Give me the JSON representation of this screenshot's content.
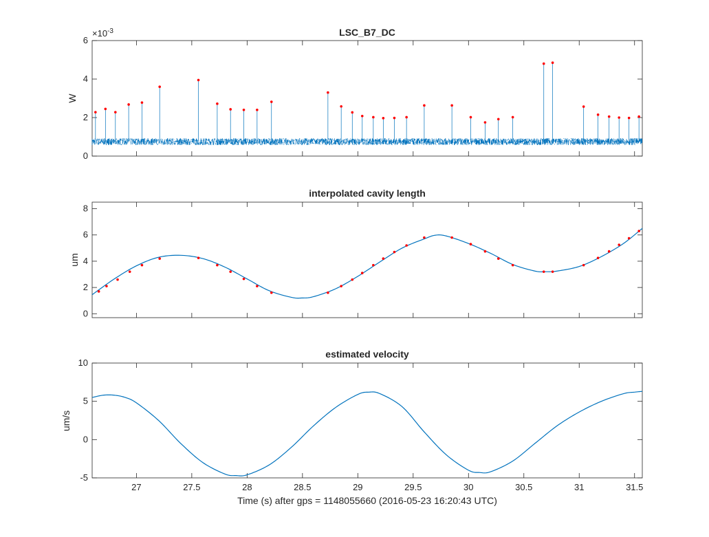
{
  "xlabel": "Time (s) after gps = 1148055660 (2016-05-23 16:20:43 UTC)",
  "x_tick_labels": [
    "27",
    "27.5",
    "28",
    "28.5",
    "29",
    "29.5",
    "30",
    "30.5",
    "31",
    "31.5"
  ],
  "colors": {
    "trace": "#0072BD",
    "marker": "#FF0000",
    "axis": "#262626"
  },
  "chart_data": [
    {
      "type": "line",
      "title": "LSC_B7_DC",
      "ylabel": "W",
      "exponent_label": "×10",
      "exponent_power": "-3",
      "xlim": [
        26.6,
        31.57
      ],
      "ylim": [
        0,
        6
      ],
      "y_ticks": [
        0,
        2,
        4,
        6
      ],
      "y_tick_labels": [
        "0",
        "2",
        "4",
        "6"
      ],
      "grid": false,
      "baseline": 0.75,
      "noise_amplitude": 0.18,
      "peaks": [
        {
          "x": 26.63,
          "y": 2.28
        },
        {
          "x": 26.72,
          "y": 2.45
        },
        {
          "x": 26.81,
          "y": 2.28
        },
        {
          "x": 26.93,
          "y": 2.68
        },
        {
          "x": 27.05,
          "y": 2.78
        },
        {
          "x": 27.21,
          "y": 3.6
        },
        {
          "x": 27.56,
          "y": 3.95
        },
        {
          "x": 27.73,
          "y": 2.72
        },
        {
          "x": 27.85,
          "y": 2.43
        },
        {
          "x": 27.97,
          "y": 2.4
        },
        {
          "x": 28.09,
          "y": 2.4
        },
        {
          "x": 28.22,
          "y": 2.82
        },
        {
          "x": 28.73,
          "y": 3.3
        },
        {
          "x": 28.85,
          "y": 2.58
        },
        {
          "x": 28.95,
          "y": 2.27
        },
        {
          "x": 29.04,
          "y": 2.08
        },
        {
          "x": 29.14,
          "y": 2.02
        },
        {
          "x": 29.23,
          "y": 1.97
        },
        {
          "x": 29.33,
          "y": 1.98
        },
        {
          "x": 29.44,
          "y": 2.02
        },
        {
          "x": 29.6,
          "y": 2.63
        },
        {
          "x": 29.85,
          "y": 2.63
        },
        {
          "x": 30.02,
          "y": 2.02
        },
        {
          "x": 30.15,
          "y": 1.75
        },
        {
          "x": 30.27,
          "y": 1.92
        },
        {
          "x": 30.4,
          "y": 2.02
        },
        {
          "x": 30.68,
          "y": 4.8
        },
        {
          "x": 30.76,
          "y": 4.85
        },
        {
          "x": 31.04,
          "y": 2.57
        },
        {
          "x": 31.17,
          "y": 2.15
        },
        {
          "x": 31.27,
          "y": 2.05
        },
        {
          "x": 31.36,
          "y": 2.0
        },
        {
          "x": 31.45,
          "y": 1.98
        },
        {
          "x": 31.54,
          "y": 2.05
        }
      ]
    },
    {
      "type": "line",
      "title": "interpolated cavity length",
      "ylabel": "um",
      "xlim": [
        26.6,
        31.57
      ],
      "ylim": [
        -0.3,
        8.5
      ],
      "y_ticks": [
        0,
        2,
        4,
        6,
        8
      ],
      "y_tick_labels": [
        "0",
        "2",
        "4",
        "6",
        "8"
      ],
      "grid": false,
      "x": [
        26.6,
        26.8,
        27.0,
        27.2,
        27.4,
        27.6,
        27.8,
        28.0,
        28.2,
        28.4,
        28.5,
        28.6,
        28.8,
        29.0,
        29.2,
        29.4,
        29.6,
        29.7,
        29.8,
        30.0,
        30.2,
        30.4,
        30.6,
        30.7,
        30.8,
        31.0,
        31.2,
        31.4,
        31.57
      ],
      "y": [
        1.45,
        2.65,
        3.65,
        4.3,
        4.45,
        4.2,
        3.55,
        2.65,
        1.75,
        1.25,
        1.2,
        1.3,
        1.9,
        2.85,
        3.95,
        5.0,
        5.7,
        5.98,
        5.92,
        5.35,
        4.6,
        3.75,
        3.25,
        3.2,
        3.25,
        3.6,
        4.35,
        5.35,
        6.5
      ],
      "markers": {
        "x": [
          26.66,
          26.73,
          26.83,
          26.94,
          27.05,
          27.21,
          27.56,
          27.73,
          27.85,
          27.97,
          28.09,
          28.22,
          28.73,
          28.85,
          28.95,
          29.04,
          29.14,
          29.23,
          29.33,
          29.44,
          29.6,
          29.85,
          30.02,
          30.15,
          30.27,
          30.4,
          30.68,
          30.76,
          31.04,
          31.17,
          31.27,
          31.36,
          31.45,
          31.54
        ],
        "y": [
          1.7,
          2.1,
          2.6,
          3.2,
          3.7,
          4.2,
          4.25,
          3.7,
          3.2,
          2.65,
          2.1,
          1.6,
          1.6,
          2.1,
          2.6,
          3.1,
          3.7,
          4.2,
          4.7,
          5.2,
          5.8,
          5.8,
          5.3,
          4.75,
          4.2,
          3.7,
          3.2,
          3.2,
          3.7,
          4.25,
          4.75,
          5.25,
          5.75,
          6.3
        ]
      }
    },
    {
      "type": "line",
      "title": "estimated velocity",
      "ylabel": "um/s",
      "xlim": [
        26.6,
        31.57
      ],
      "ylim": [
        -5,
        10
      ],
      "y_ticks": [
        -5,
        0,
        5,
        10
      ],
      "y_tick_labels": [
        "-5",
        "0",
        "5",
        "10"
      ],
      "grid": false,
      "x": [
        26.6,
        26.7,
        26.8,
        26.9,
        27.0,
        27.2,
        27.4,
        27.6,
        27.8,
        27.9,
        28.0,
        28.2,
        28.4,
        28.6,
        28.8,
        29.0,
        29.1,
        29.2,
        29.4,
        29.6,
        29.8,
        30.0,
        30.1,
        30.2,
        30.4,
        30.6,
        30.8,
        31.0,
        31.2,
        31.4,
        31.5,
        31.57
      ],
      "y": [
        5.5,
        5.8,
        5.8,
        5.5,
        4.8,
        2.5,
        -0.5,
        -3.0,
        -4.5,
        -4.7,
        -4.6,
        -3.3,
        -1.0,
        1.8,
        4.2,
        5.9,
        6.2,
        6.0,
        4.3,
        1.0,
        -2.0,
        -4.0,
        -4.3,
        -4.2,
        -2.8,
        -0.5,
        1.8,
        3.6,
        5.0,
        6.0,
        6.2,
        6.3
      ]
    }
  ]
}
